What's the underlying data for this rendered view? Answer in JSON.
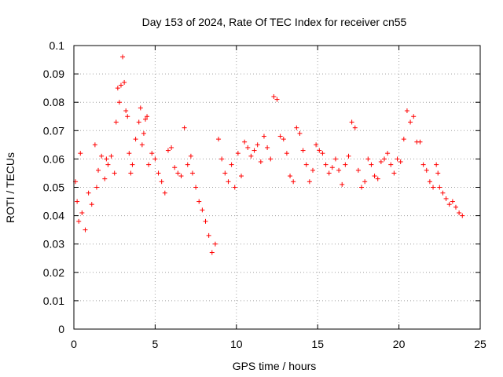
{
  "chart_data": {
    "type": "scatter",
    "title": "Day 153 of 2024, Rate Of TEC Index for receiver cn55",
    "xlabel": "GPS time / hours",
    "ylabel": "ROTI / TECUs",
    "xlim": [
      0,
      25
    ],
    "ylim": [
      0,
      0.1
    ],
    "xticks": [
      "0",
      "5",
      "10",
      "15",
      "20",
      "25"
    ],
    "yticks": [
      "0",
      "0.01",
      "0.02",
      "0.03",
      "0.04",
      "0.05",
      "0.06",
      "0.07",
      "0.08",
      "0.09",
      "0.1"
    ],
    "grid": true,
    "marker": "plus",
    "color": "#ff0000",
    "series": [
      {
        "x": [
          0.1,
          0.2,
          0.3,
          0.4,
          0.5,
          0.7,
          0.9,
          1.1,
          1.3,
          1.4,
          1.5,
          1.7,
          1.9,
          2.0,
          2.1,
          2.3,
          2.5,
          2.6,
          2.7,
          2.8,
          2.9,
          3.0,
          3.1,
          3.2,
          3.3,
          3.4,
          3.5,
          3.6,
          3.8,
          4.0,
          4.1,
          4.2,
          4.3,
          4.4,
          4.5,
          4.6,
          4.8,
          5.0,
          5.2,
          5.4,
          5.6,
          5.8,
          6.0,
          6.2,
          6.4,
          6.6,
          6.8,
          7.0,
          7.2,
          7.3,
          7.5,
          7.7,
          7.9,
          8.1,
          8.3,
          8.5,
          8.7,
          8.9,
          9.1,
          9.3,
          9.5,
          9.7,
          9.9,
          10.1,
          10.3,
          10.5,
          10.7,
          10.9,
          11.1,
          11.3,
          11.5,
          11.7,
          11.9,
          12.1,
          12.3,
          12.5,
          12.7,
          12.9,
          13.1,
          13.3,
          13.5,
          13.7,
          13.9,
          14.1,
          14.3,
          14.5,
          14.7,
          14.9,
          15.1,
          15.3,
          15.5,
          15.7,
          15.9,
          16.1,
          16.3,
          16.5,
          16.7,
          16.9,
          17.1,
          17.3,
          17.5,
          17.7,
          17.9,
          18.1,
          18.3,
          18.5,
          18.7,
          18.9,
          19.1,
          19.3,
          19.5,
          19.7,
          19.9,
          20.1,
          20.3,
          20.5,
          20.7,
          20.9,
          21.1,
          21.3,
          21.5,
          21.7,
          21.9,
          22.1,
          22.3,
          22.4,
          22.5,
          22.7,
          22.9,
          23.1,
          23.3,
          23.5,
          23.7,
          23.9
        ],
        "y": [
          0.052,
          0.045,
          0.038,
          0.062,
          0.041,
          0.035,
          0.048,
          0.044,
          0.065,
          0.05,
          0.056,
          0.061,
          0.053,
          0.06,
          0.058,
          0.061,
          0.055,
          0.073,
          0.085,
          0.08,
          0.086,
          0.096,
          0.087,
          0.077,
          0.075,
          0.062,
          0.055,
          0.058,
          0.067,
          0.073,
          0.078,
          0.065,
          0.069,
          0.074,
          0.075,
          0.058,
          0.062,
          0.06,
          0.055,
          0.052,
          0.048,
          0.063,
          0.064,
          0.057,
          0.055,
          0.054,
          0.071,
          0.058,
          0.061,
          0.055,
          0.05,
          0.045,
          0.042,
          0.038,
          0.033,
          0.027,
          0.03,
          0.067,
          0.06,
          0.055,
          0.052,
          0.058,
          0.05,
          0.062,
          0.054,
          0.066,
          0.064,
          0.061,
          0.063,
          0.065,
          0.059,
          0.068,
          0.064,
          0.06,
          0.082,
          0.081,
          0.068,
          0.067,
          0.062,
          0.054,
          0.052,
          0.071,
          0.069,
          0.063,
          0.058,
          0.052,
          0.056,
          0.065,
          0.063,
          0.062,
          0.058,
          0.055,
          0.057,
          0.06,
          0.056,
          0.051,
          0.058,
          0.061,
          0.073,
          0.071,
          0.056,
          0.05,
          0.052,
          0.06,
          0.058,
          0.054,
          0.053,
          0.059,
          0.06,
          0.062,
          0.058,
          0.055,
          0.06,
          0.059,
          0.067,
          0.077,
          0.073,
          0.075,
          0.066,
          0.066,
          0.058,
          0.056,
          0.052,
          0.05,
          0.058,
          0.055,
          0.05,
          0.048,
          0.046,
          0.044,
          0.045,
          0.043,
          0.041,
          0.04
        ]
      }
    ]
  }
}
